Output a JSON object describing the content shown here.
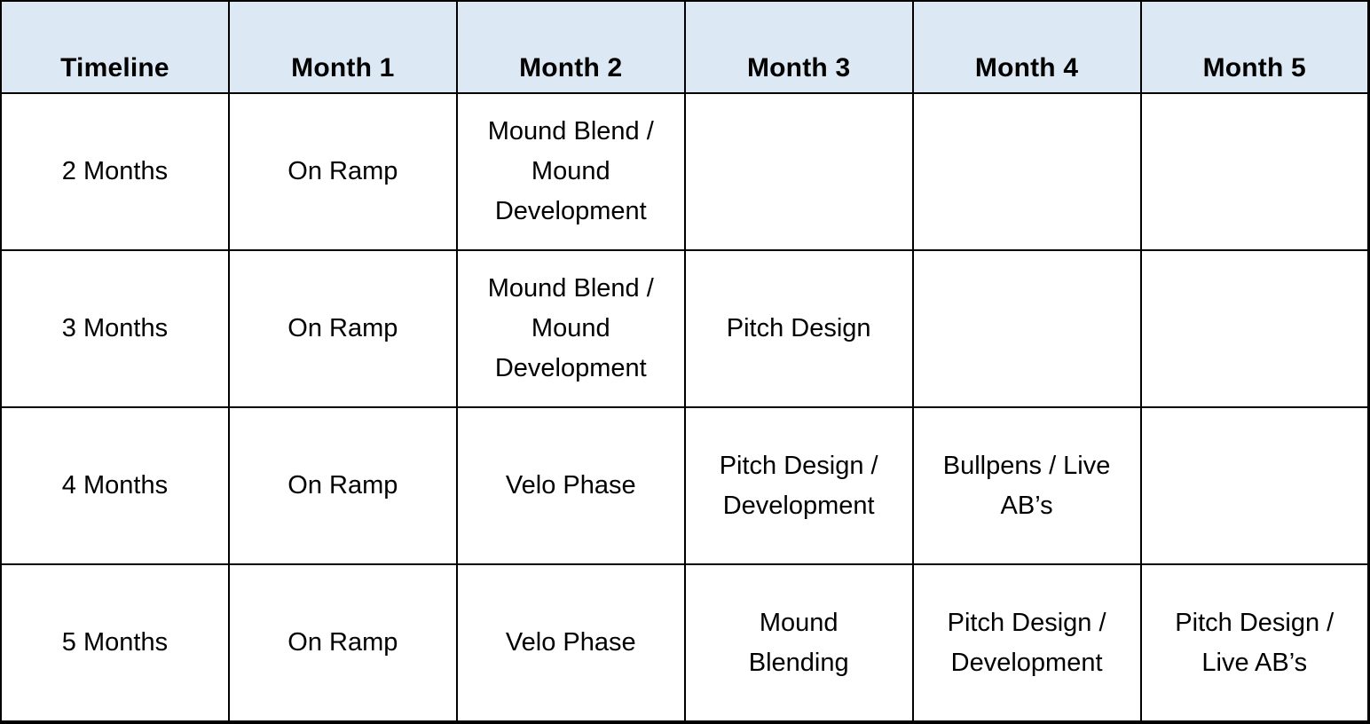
{
  "colors": {
    "header_bg": "#dce9f5",
    "border": "#000000",
    "text": "#000000"
  },
  "table": {
    "headers": [
      "Timeline",
      "Month 1",
      "Month 2",
      "Month 3",
      "Month 4",
      "Month 5"
    ],
    "rows": [
      [
        "2 Months",
        "On Ramp",
        "Mound Blend /\nMound\nDevelopment",
        "",
        "",
        ""
      ],
      [
        "3 Months",
        "On Ramp",
        "Mound Blend /\nMound\nDevelopment",
        "Pitch Design",
        "",
        ""
      ],
      [
        "4 Months",
        "On Ramp",
        "Velo Phase",
        "Pitch Design /\nDevelopment",
        "Bullpens / Live\nAB’s",
        ""
      ],
      [
        "5 Months",
        "On Ramp",
        "Velo Phase",
        "Mound\nBlending",
        "Pitch Design /\nDevelopment",
        "Pitch Design /\nLive AB’s"
      ]
    ]
  }
}
